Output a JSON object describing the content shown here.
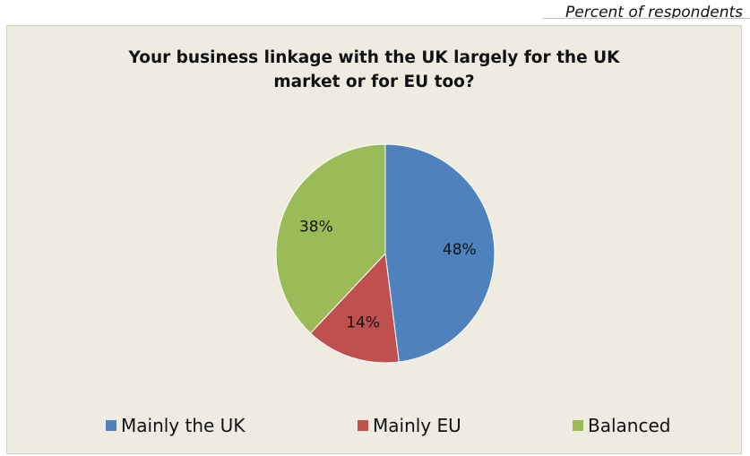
{
  "note": "Percent of respondents",
  "chart_data": {
    "type": "pie",
    "title": [
      "Your business linkage with the UK largely for the UK",
      "market or for EU too?"
    ],
    "categories": [
      "Mainly the UK",
      "Mainly EU",
      "Balanced"
    ],
    "values": [
      48,
      14,
      38
    ],
    "value_labels": [
      "48%",
      "14%",
      "38%"
    ],
    "colors": [
      "#4f81bd",
      "#c0504d",
      "#9bbb59"
    ],
    "legend_position": "bottom"
  }
}
